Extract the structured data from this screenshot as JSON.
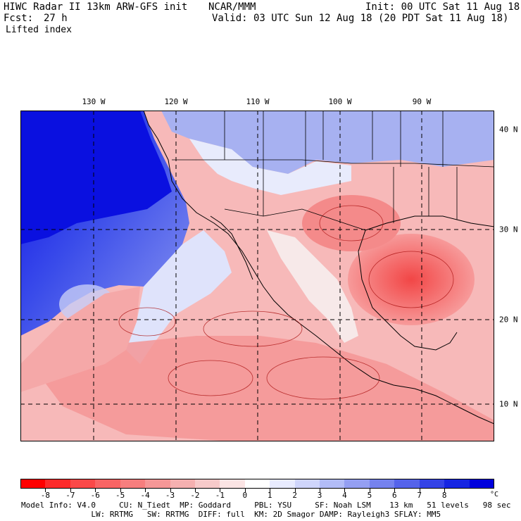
{
  "header": {
    "model_line": "HIWC Radar II 13km ARW-GFS init",
    "org": "NCAR/MMM",
    "init": "Init: 00 UTC Sat 11 Aug 18",
    "fcst_label": "Fcst:",
    "fcst_value": "27 h",
    "valid": "Valid: 03 UTC Sun 12 Aug 18 (20 PDT Sat 11 Aug 18)",
    "field": "Lifted index"
  },
  "map": {
    "lon_labels": [
      "130 W",
      "120 W",
      "110 W",
      "100 W",
      "90 W"
    ],
    "lat_labels": [
      "40 N",
      "30 N",
      "20 N",
      "10 N"
    ]
  },
  "colorbar": {
    "labels": [
      "-8",
      "-7",
      "-6",
      "-5",
      "-4",
      "-3",
      "-2",
      "-1",
      "0",
      "1",
      "2",
      "3",
      "4",
      "5",
      "6",
      "7",
      "8"
    ],
    "unit": "°C",
    "colors": [
      "#ff0000",
      "#fd2a2a",
      "#fb4848",
      "#f96464",
      "#f77e7e",
      "#f69797",
      "#f5b0b0",
      "#f7caca",
      "#fbe4e4",
      "#ffffff",
      "#e8ebff",
      "#cfd5fb",
      "#b2bcf7",
      "#949ff2",
      "#7582ee",
      "#5563ea",
      "#3443e6",
      "#1625e2",
      "#0000dd"
    ]
  },
  "footer": {
    "model_info": "Model Info: V4.0",
    "cu": "CU: N_Tiedt",
    "mp": "MP: Goddard",
    "pbl": "PBL: YSU",
    "sf": "SF: Noah LSM",
    "km": "13 km",
    "levels": "51 levels",
    "sec": "98 sec",
    "lw": "LW: RRTMG",
    "sw": "SW: RRTMG",
    "diff": "DIFF: full",
    "km2": "KM: 2D Smagor",
    "damp": "DAMP: Rayleigh3",
    "sflay": "SFLAY: MM5"
  }
}
